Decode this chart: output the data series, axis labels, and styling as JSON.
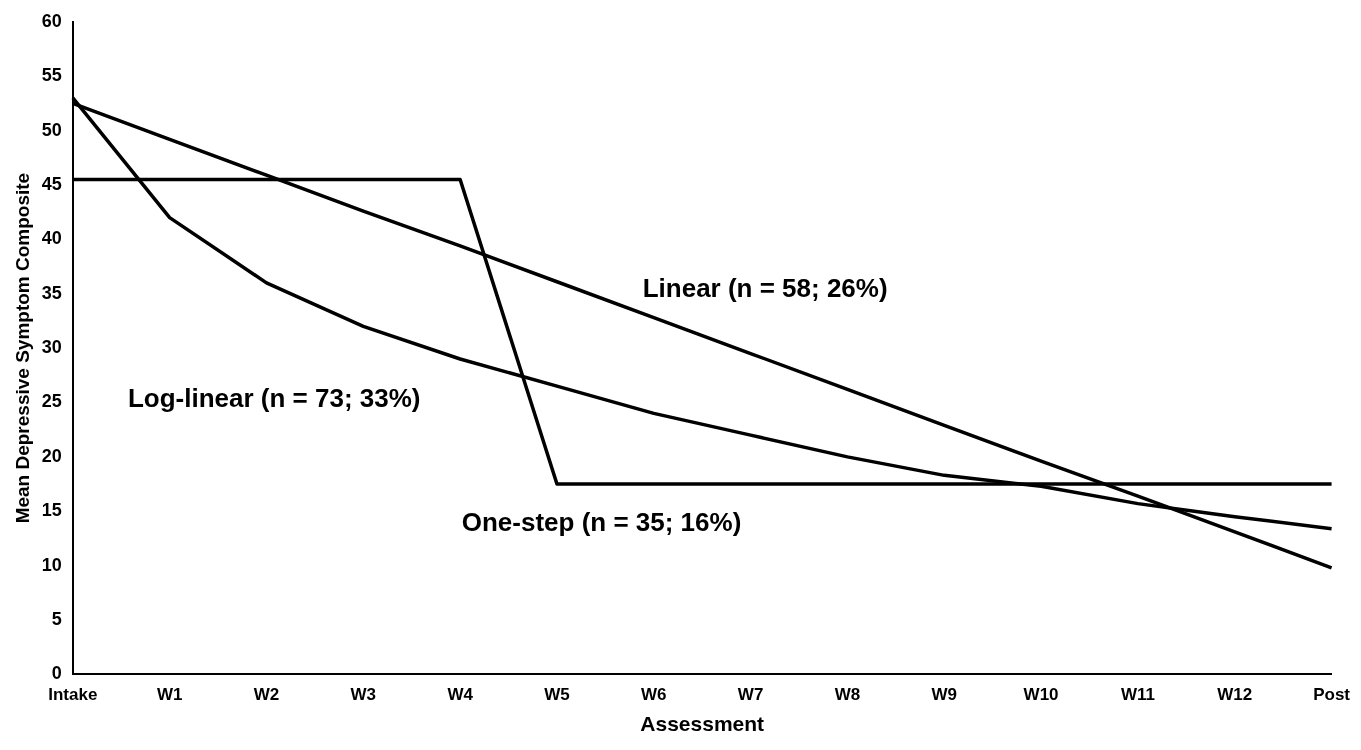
{
  "chart_data": {
    "type": "line",
    "xlabel": "Assessment",
    "ylabel": "Mean Depressive Symptom Composite",
    "categories": [
      "Intake",
      "W1",
      "W2",
      "W3",
      "W4",
      "W5",
      "W6",
      "W7",
      "W8",
      "W9",
      "W10",
      "W11",
      "W12",
      "Post"
    ],
    "series": [
      {
        "color": "#000000",
        "values": [
          52.5,
          49.2,
          45.9,
          42.6,
          39.4,
          36.1,
          32.8,
          29.5,
          26.2,
          22.9,
          19.6,
          16.4,
          13.1,
          9.8
        ]
      },
      {
        "color": "#000000",
        "values": [
          45.5,
          45.5,
          45.5,
          45.5,
          45.5,
          17.5,
          17.5,
          17.5,
          17.5,
          17.5,
          17.5,
          17.5,
          17.5,
          17.5
        ]
      },
      {
        "color": "#000000",
        "values": [
          53,
          42,
          36,
          32,
          29,
          26.5,
          24,
          22,
          20,
          18.3,
          17.3,
          15.7,
          14.5,
          13.4
        ]
      }
    ],
    "ylim": [
      0,
      60
    ],
    "yticks": [
      0,
      5,
      10,
      15,
      20,
      25,
      30,
      35,
      40,
      45,
      50,
      55,
      60
    ],
    "grid": false,
    "legend": false,
    "marker": "none",
    "line_style": "solid",
    "annotations": [
      "Linear (n = 58; 26%)",
      "Log-linear (n = 73; 33%)",
      "One-step (n = 35; 16%)"
    ]
  }
}
